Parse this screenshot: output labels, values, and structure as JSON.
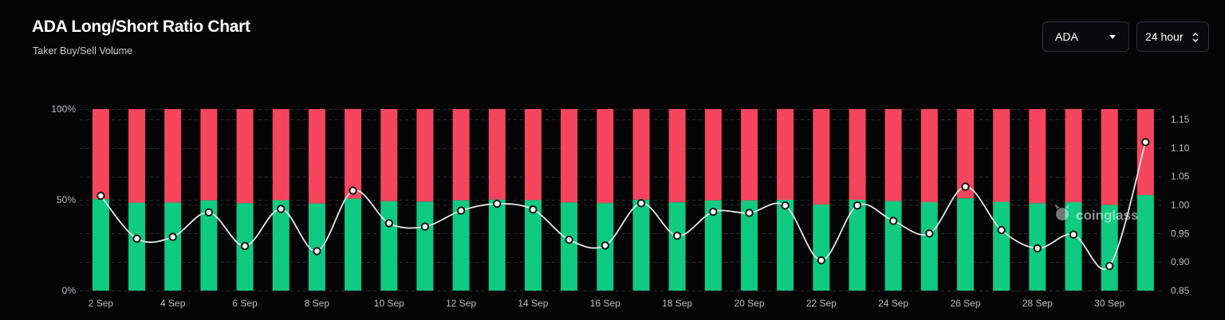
{
  "header": {
    "title": "ADA Long/Short Ratio Chart",
    "subtitle": "Taker Buy/Sell Volume"
  },
  "controls": {
    "coin_select": {
      "value": "ADA",
      "icon": "caret-down-icon"
    },
    "period_select": {
      "value": "24 hour",
      "icon": "chevron-updown-icon"
    }
  },
  "watermark": {
    "text": "coinglass"
  },
  "colors": {
    "long": "#0ecb81",
    "short": "#f6465d",
    "ratio_line": "#e8e8e8",
    "background": "#040407"
  },
  "chart_data": {
    "type": "bar",
    "stacked": true,
    "x": [
      "2 Sep",
      "3 Sep",
      "4 Sep",
      "5 Sep",
      "6 Sep",
      "7 Sep",
      "8 Sep",
      "9 Sep",
      "10 Sep",
      "11 Sep",
      "12 Sep",
      "13 Sep",
      "14 Sep",
      "15 Sep",
      "16 Sep",
      "17 Sep",
      "18 Sep",
      "19 Sep",
      "20 Sep",
      "21 Sep",
      "22 Sep",
      "23 Sep",
      "24 Sep",
      "25 Sep",
      "26 Sep",
      "27 Sep",
      "28 Sep",
      "29 Sep",
      "30 Sep",
      "1 Oct"
    ],
    "x_tick_labels": [
      "2 Sep",
      "4 Sep",
      "6 Sep",
      "8 Sep",
      "10 Sep",
      "12 Sep",
      "14 Sep",
      "16 Sep",
      "18 Sep",
      "20 Sep",
      "22 Sep",
      "24 Sep",
      "26 Sep",
      "28 Sep",
      "30 Sep"
    ],
    "series": [
      {
        "axis": "left",
        "type": "bar",
        "color": "#0ecb81",
        "values": [
          50.4,
          48.4,
          48.5,
          49.7,
          48.1,
          49.8,
          48.0,
          50.6,
          49.2,
          49.0,
          49.7,
          50.1,
          49.8,
          48.5,
          48.2,
          50.1,
          48.6,
          49.7,
          49.6,
          50.0,
          47.4,
          50.0,
          49.3,
          48.7,
          50.8,
          48.9,
          48.1,
          48.7,
          47.2,
          52.6
        ]
      },
      {
        "axis": "left",
        "type": "bar",
        "color": "#f6465d",
        "values": [
          49.6,
          51.6,
          51.5,
          50.3,
          51.9,
          50.2,
          52.0,
          49.4,
          50.8,
          51.0,
          50.3,
          49.9,
          50.2,
          51.5,
          51.8,
          49.9,
          51.4,
          50.3,
          50.4,
          50.0,
          52.6,
          50.0,
          50.7,
          51.3,
          49.2,
          51.1,
          51.9,
          51.3,
          52.8,
          47.4
        ]
      },
      {
        "axis": "right",
        "type": "line",
        "color": "#e8e8e8",
        "values": [
          1.016,
          0.941,
          0.944,
          0.987,
          0.928,
          0.993,
          0.919,
          1.025,
          0.968,
          0.962,
          0.99,
          1.002,
          0.992,
          0.939,
          0.929,
          1.003,
          0.946,
          0.988,
          0.986,
          0.999,
          0.903,
          0.999,
          0.972,
          0.95,
          1.032,
          0.956,
          0.924,
          0.948,
          0.893,
          1.11
        ]
      }
    ],
    "y_left": {
      "ticks": [
        "0%",
        "50%",
        "100%"
      ],
      "range": [
        0,
        100
      ]
    },
    "y_right": {
      "ticks": [
        "0.85",
        "0.90",
        "0.95",
        "1.00",
        "1.05",
        "1.10",
        "1.15"
      ],
      "range": [
        0.85,
        1.168
      ]
    },
    "grid": true
  }
}
